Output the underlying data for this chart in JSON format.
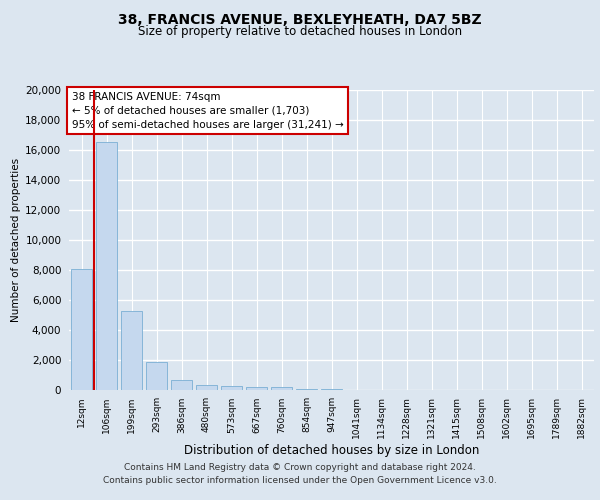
{
  "title1": "38, FRANCIS AVENUE, BEXLEYHEATH, DA7 5BZ",
  "title2": "Size of property relative to detached houses in London",
  "xlabel": "Distribution of detached houses by size in London",
  "ylabel": "Number of detached properties",
  "bar_values": [
    8100,
    16500,
    5300,
    1850,
    700,
    350,
    270,
    230,
    230,
    100,
    50,
    20,
    10,
    5,
    3,
    2,
    1,
    1,
    0,
    0,
    0
  ],
  "bar_labels": [
    "12sqm",
    "106sqm",
    "199sqm",
    "293sqm",
    "386sqm",
    "480sqm",
    "573sqm",
    "667sqm",
    "760sqm",
    "854sqm",
    "947sqm",
    "1041sqm",
    "1134sqm",
    "1228sqm",
    "1321sqm",
    "1415sqm",
    "1508sqm",
    "1602sqm",
    "1695sqm",
    "1789sqm",
    "1882sqm"
  ],
  "bar_color": "#c5d8ee",
  "bar_edge_color": "#7aafd4",
  "ylim": [
    0,
    20000
  ],
  "yticks": [
    0,
    2000,
    4000,
    6000,
    8000,
    10000,
    12000,
    14000,
    16000,
    18000,
    20000
  ],
  "annotation_line1": "38 FRANCIS AVENUE: 74sqm",
  "annotation_line2": "← 5% of detached houses are smaller (1,703)",
  "annotation_line3": "95% of semi-detached houses are larger (31,241) →",
  "annotation_box_facecolor": "#ffffff",
  "annotation_border_color": "#cc0000",
  "vline_color": "#cc0000",
  "footer1": "Contains HM Land Registry data © Crown copyright and database right 2024.",
  "footer2": "Contains public sector information licensed under the Open Government Licence v3.0.",
  "background_color": "#dce6f0",
  "plot_bg_color": "#dce6f0",
  "grid_color": "#ffffff"
}
